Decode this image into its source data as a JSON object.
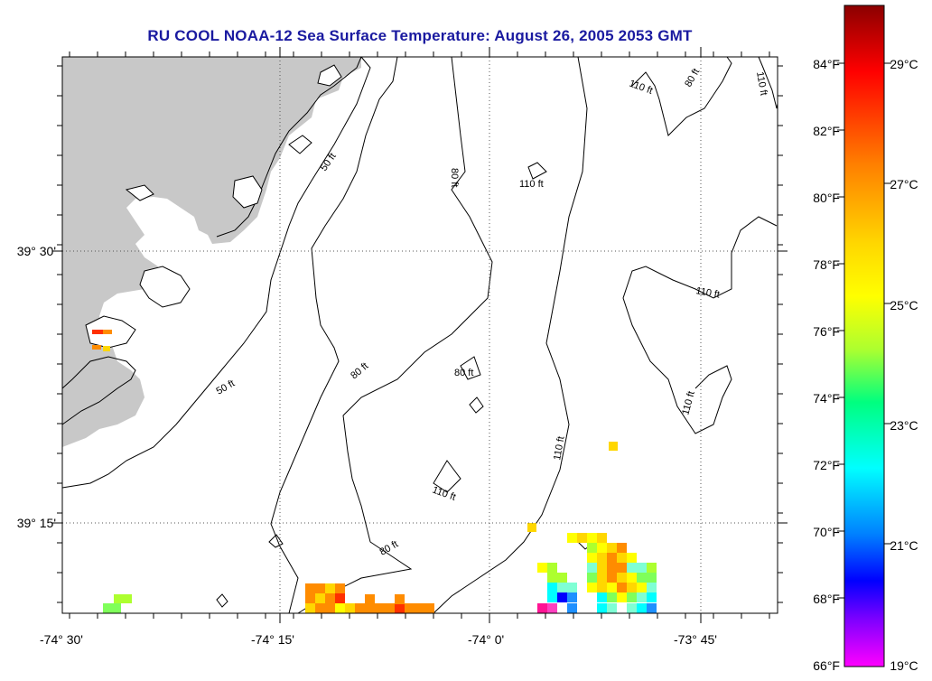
{
  "title": "RU COOL  NOAA-12  Sea Surface Temperature:  August 26, 2005 2053 GMT",
  "lat_labels": [
    "39° 30'",
    "39° 15'"
  ],
  "lon_labels": [
    "-74° 30'",
    "-74° 15'",
    "-74° 0'",
    "-73° 45'"
  ],
  "contour_labels": [
    "50 ft",
    "50 ft",
    "80 ft",
    "80 ft",
    "80 ft",
    "80 ft",
    "110 ft",
    "110 ft",
    "110 ft",
    "110 ft",
    "110 ft",
    "110 ft",
    "110 ft",
    "80 ft"
  ],
  "colorbar": {
    "fahrenheit_labels": [
      "84°F",
      "82°F",
      "80°F",
      "78°F",
      "76°F",
      "74°F",
      "72°F",
      "70°F",
      "68°F",
      "66°F"
    ],
    "celsius_labels": [
      "29°C",
      "27°C",
      "25°C",
      "23°C",
      "21°C",
      "19°C"
    ],
    "colors": [
      "#8b0000",
      "#ff0000",
      "#ff7f00",
      "#ffd700",
      "#ffff00",
      "#adff2f",
      "#00ff7f",
      "#00ffff",
      "#0080ff",
      "#0000ff",
      "#8000ff",
      "#ff00ff"
    ]
  },
  "land_color": "#c8c8c8"
}
